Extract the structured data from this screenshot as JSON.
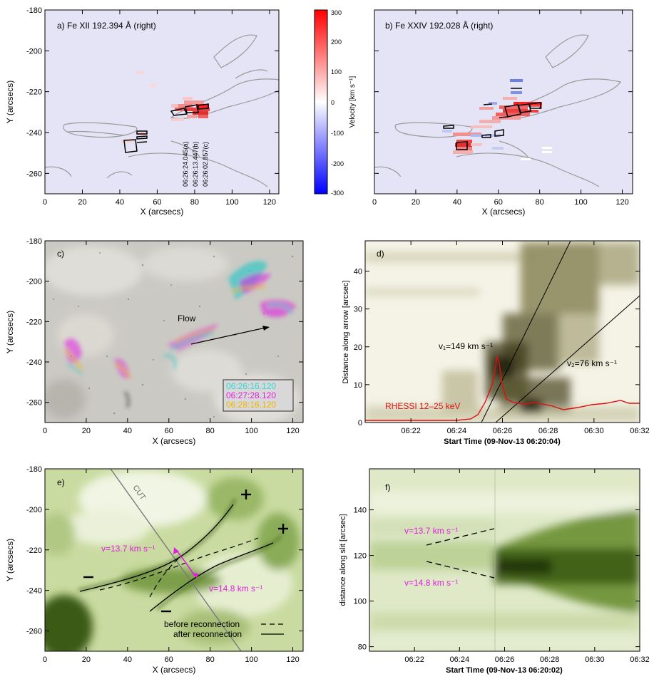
{
  "panels": {
    "a": {
      "title": "a) Fe XII 192.394 Å (right)",
      "xlabel": "X (arcsecs)",
      "ylabel": "Y (arcsecs)",
      "times": [
        "06:26:24.045(a)",
        "06:26:13.447(b)",
        "06:26:02.857(c)"
      ]
    },
    "b": {
      "title": "b) Fe XXIV 192.028 Å (right)",
      "xlabel": "X (arcsecs)"
    },
    "colorbar": {
      "label": "Velocity [km s⁻¹]",
      "ticks": [
        "300",
        "200",
        "100",
        "0",
        "-100",
        "-200",
        "-300"
      ]
    },
    "c": {
      "title": "c)",
      "xlabel": "X (arcsecs)",
      "ylabel": "Y (arcsecs)",
      "flow_label": "Flow",
      "legend": [
        {
          "text": "06:26:16.120",
          "color": "#33d6d6"
        },
        {
          "text": "06:27:28.120",
          "color": "#e020e0"
        },
        {
          "text": "06:28:16.120",
          "color": "#f0b400"
        }
      ]
    },
    "d": {
      "title": "d)",
      "xlabel": "Start Time (09-Nov-13 06:20:04)",
      "ylabel": "Distance along arrow [arcsec]",
      "v1": "v₁=149 km s⁻¹",
      "v2": "v₂=76 km s⁻¹",
      "rhessi": "RHESSI 12–25 keV"
    },
    "e": {
      "title": "e)",
      "xlabel": "X (arcsecs)",
      "ylabel": "Y (arcsecs)",
      "cut": "CUT",
      "v_up": "v=13.7 km s⁻¹",
      "v_down": "v=14.8 km s⁻¹",
      "legend_before": "before reconnection",
      "legend_after": "after reconnection"
    },
    "f": {
      "title": "f)",
      "xlabel": "Start Time (09-Nov-13 06:20:02)",
      "ylabel": "distance along slit [arcsec]",
      "v_up": "v=13.7 km s⁻¹",
      "v_down": "v=14.8 km s⁻¹"
    }
  },
  "axes": {
    "x_arcsec_ticks": [
      "0",
      "20",
      "40",
      "60",
      "80",
      "100",
      "120"
    ],
    "y_arcsec_ticks": [
      "-180",
      "-200",
      "-220",
      "-240",
      "-260"
    ],
    "time_ticks": [
      "06:22",
      "06:24",
      "06:26",
      "06:28",
      "06:30",
      "06:32"
    ],
    "d_y_ticks": [
      "0",
      "10",
      "20",
      "30",
      "40"
    ],
    "f_y_ticks": [
      "80",
      "100",
      "120",
      "140"
    ]
  },
  "colors": {
    "plot_bg": "#e4e4f6",
    "red": "#e8383a",
    "blue": "#4a6ae0",
    "green_dark": "#3b5a12",
    "olive_dark": "#3c3a1a",
    "magenta": "#e020e0",
    "rhessi": "#e01010"
  }
}
